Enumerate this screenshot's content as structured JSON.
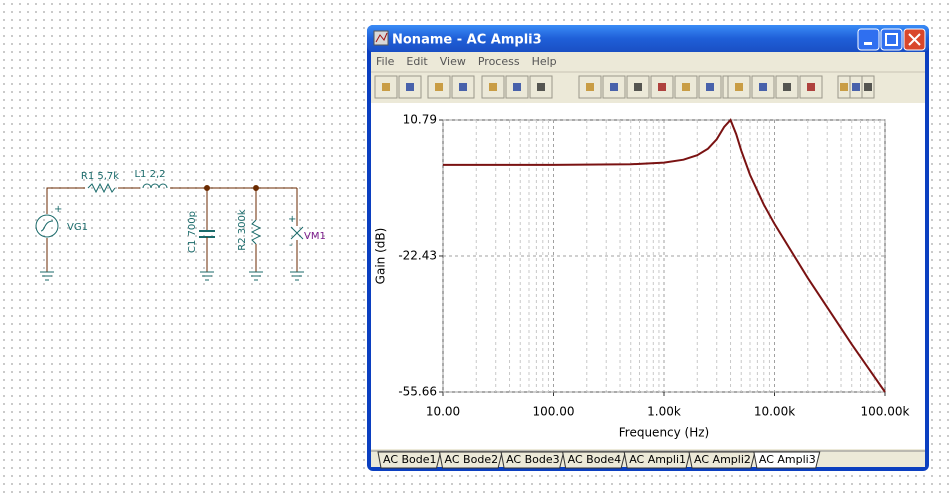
{
  "window": {
    "title": "Noname - AC Ampli3",
    "menu": [
      "File",
      "Edit",
      "View",
      "Process",
      "Help"
    ],
    "tabs": [
      "AC Bode1",
      "AC Bode2",
      "AC Bode3",
      "AC Bode4",
      "AC Ampli1",
      "AC Ampli2",
      "AC Ampli3"
    ]
  },
  "schematic": {
    "r1": "R1 5,7k",
    "l1": "L1 2,2",
    "c1": "C1 700p",
    "r2": "R2 300k",
    "vg1": "VG1",
    "vm1": "VM1",
    "plus": "+",
    "minus": "-"
  },
  "chart_data": {
    "type": "line",
    "x_label": "Frequency (Hz)",
    "y_label": "Gain (dB)",
    "x": [
      10,
      100,
      500,
      1000,
      1500,
      2000,
      2500,
      3000,
      3500,
      4000,
      4500,
      5000,
      6000,
      8000,
      10000,
      20000,
      50000,
      100000
    ],
    "series": [
      {
        "color": "#7a1212",
        "values": [
          -0.16,
          -0.16,
          -0.03,
          0.38,
          1.09,
          2.18,
          3.78,
          6.07,
          9.08,
          10.79,
          7.34,
          3.33,
          -2.59,
          -9.87,
          -14.6,
          -27.8,
          -44.0,
          -55.66
        ]
      }
    ],
    "xlim": [
      10,
      100000
    ],
    "xticks": [
      {
        "value": 10,
        "label": "10.00"
      },
      {
        "value": 100,
        "label": "100.00"
      },
      {
        "value": 1000,
        "label": "1.00k"
      },
      {
        "value": 10000,
        "label": "10.00k"
      },
      {
        "value": 100000,
        "label": "100.00k"
      }
    ],
    "ylim": [
      -55.66,
      10.79
    ],
    "yticks": [
      -55.66,
      -22.43,
      10.79
    ],
    "x_log": true,
    "grid": true,
    "minor_grid": true
  }
}
